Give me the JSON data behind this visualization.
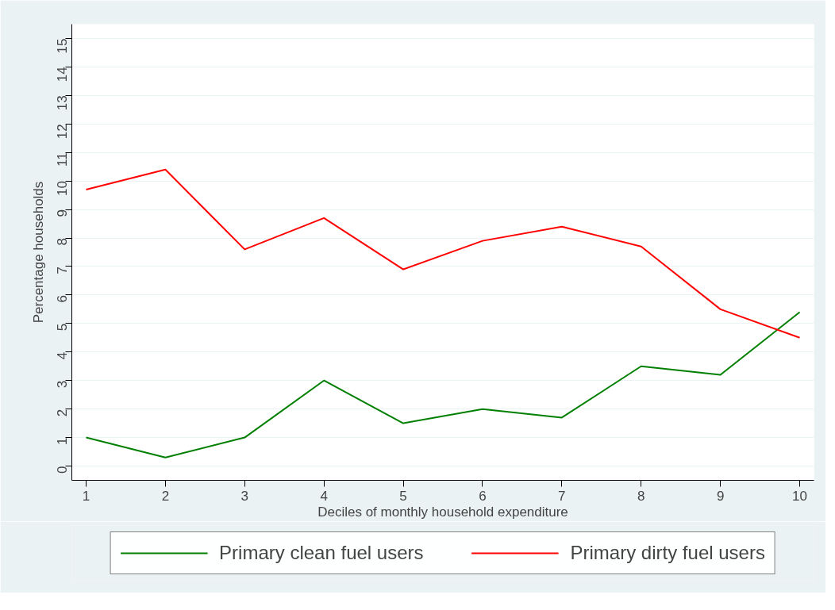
{
  "chart_data": {
    "type": "line",
    "xlabel": "Deciles of monthly household expenditure",
    "ylabel": "Percentage households",
    "x": [
      1,
      2,
      3,
      4,
      5,
      6,
      7,
      8,
      9,
      10
    ],
    "series": [
      {
        "name": "Primary clean fuel users",
        "color": "#007f00",
        "values": [
          1,
          0.3,
          1,
          3,
          1.5,
          2,
          1.7,
          3.5,
          3.2,
          5.4
        ]
      },
      {
        "name": "Primary dirty fuel users",
        "color": "#ff0000",
        "values": [
          9.7,
          10.4,
          7.6,
          8.7,
          6.9,
          7.9,
          8.4,
          7.7,
          5.5,
          4.5
        ]
      }
    ],
    "xlim": [
      0.82,
      10.18
    ],
    "xticks": [
      1,
      2,
      3,
      4,
      5,
      6,
      7,
      8,
      9,
      10
    ],
    "ylim": [
      -0.5,
      15.5
    ],
    "yticks": [
      0,
      1,
      2,
      3,
      4,
      5,
      6,
      7,
      8,
      9,
      10,
      11,
      12,
      13,
      14,
      15
    ],
    "grid": "y",
    "legend": "bottom",
    "marker": "none",
    "line_style": "solid"
  }
}
